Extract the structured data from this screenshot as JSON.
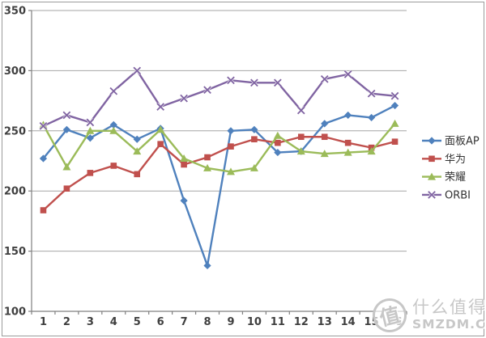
{
  "chart_data": {
    "type": "line",
    "x": [
      "1",
      "2",
      "3",
      "4",
      "5",
      "6",
      "7",
      "8",
      "9",
      "10",
      "11",
      "12",
      "13",
      "14",
      "15",
      "16"
    ],
    "series": [
      {
        "name": "面板AP",
        "color": "#4F81BD",
        "marker": "diamond",
        "values": [
          227,
          251,
          244,
          255,
          243,
          252,
          192,
          138,
          250,
          251,
          232,
          233,
          256,
          263,
          261,
          271
        ]
      },
      {
        "name": "华为",
        "color": "#C0504D",
        "marker": "square",
        "values": [
          184,
          202,
          215,
          221,
          214,
          239,
          222,
          228,
          237,
          243,
          240,
          245,
          245,
          240,
          236,
          241
        ]
      },
      {
        "name": "荣耀",
        "color": "#9BBB59",
        "marker": "triangle",
        "values": [
          255,
          220,
          250,
          250,
          233,
          251,
          227,
          219,
          216,
          219,
          246,
          233,
          231,
          232,
          233,
          256
        ]
      },
      {
        "name": "ORBI",
        "color": "#8064A2",
        "marker": "x",
        "values": [
          254,
          263,
          257,
          283,
          300,
          270,
          277,
          284,
          292,
          290,
          290,
          267,
          293,
          297,
          281,
          279
        ]
      }
    ],
    "title": "",
    "xlabel": "",
    "ylabel": "",
    "ylim": [
      100,
      350
    ],
    "ytick_step": 50,
    "y_tick_labels": [
      "350",
      "300",
      "250",
      "200",
      "150",
      "100"
    ],
    "grid": true,
    "legend_position": "right"
  },
  "colors": {
    "background": "#FFFFFF",
    "frame_border": "#9B9B9B",
    "gridline": "#A6A6A6",
    "axis": "#808080",
    "tick_label": "#3F3F3F",
    "legend_text": "#333333",
    "watermark": "#C7C7C7"
  },
  "watermark": {
    "seal_char": "值",
    "line1": "什么值得买",
    "line2": "SMZDM.COM"
  }
}
